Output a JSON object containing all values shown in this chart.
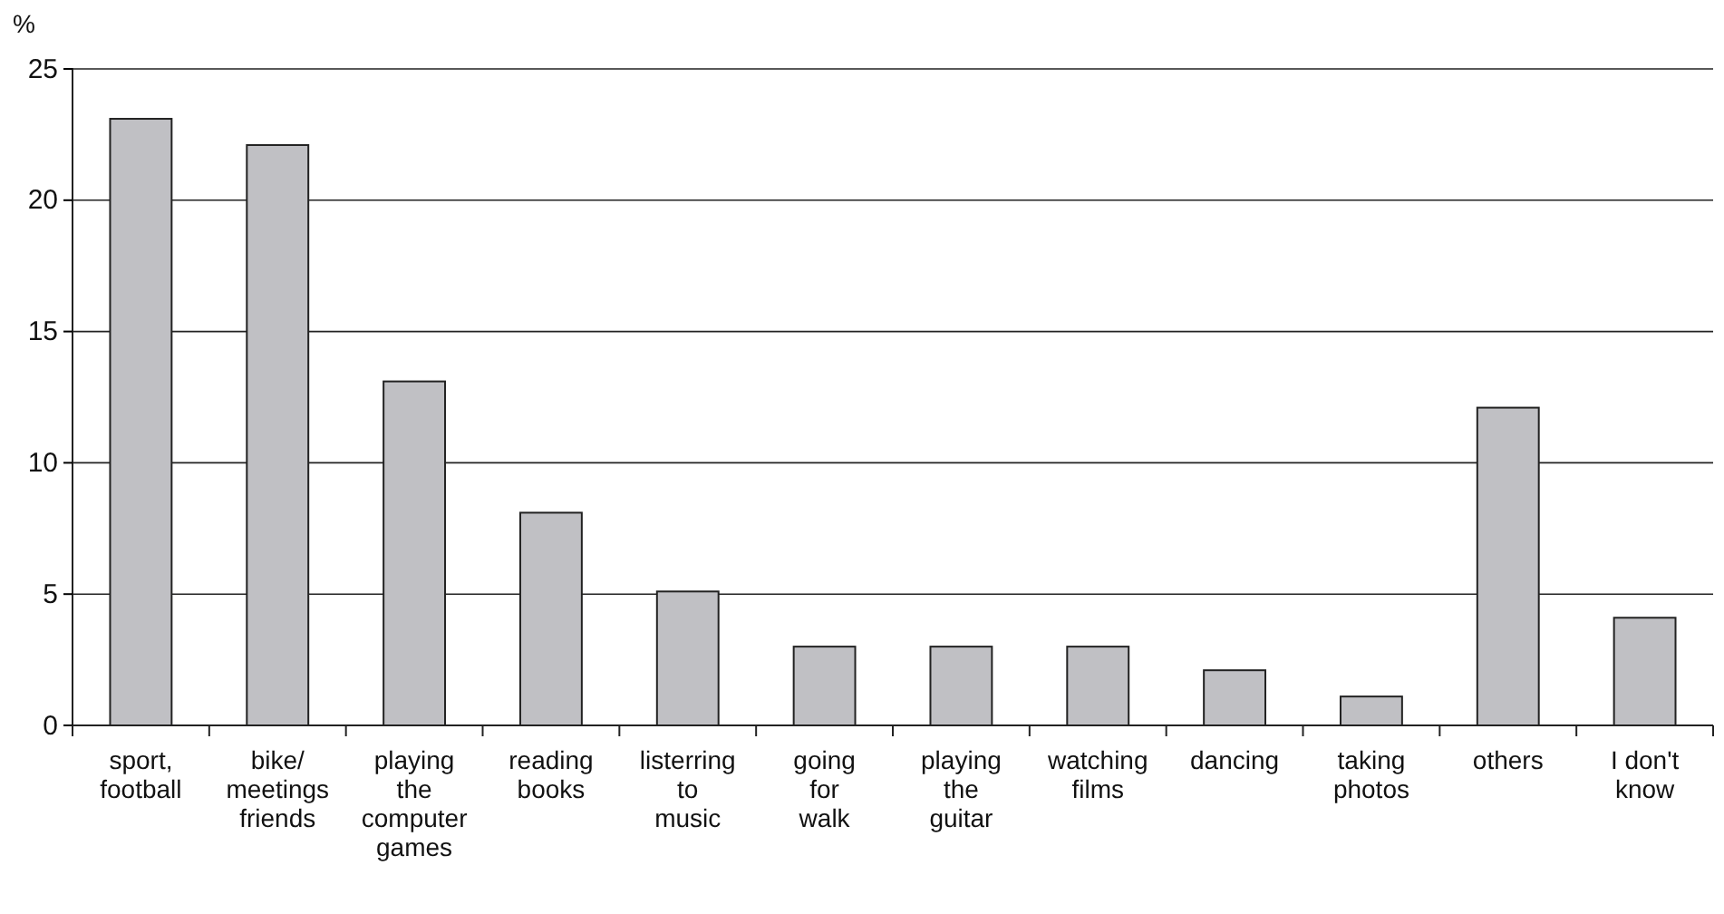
{
  "chart_data": {
    "type": "bar",
    "ylabel": "%",
    "categories": [
      "sport,\nfootball",
      "bike/\nmeetings\nfriends",
      "playing\nthe\ncomputer\ngames",
      "reading\nbooks",
      "listerring\nto\nmusic",
      "going\nfor\nwalk",
      "playing\nthe\nguitar",
      "watching\nfilms",
      "dancing",
      "taking\nphotos",
      "others",
      "I don't\nknow"
    ],
    "values": [
      23.1,
      22.1,
      13.1,
      8.1,
      5.1,
      3,
      3,
      3,
      2.1,
      1.1,
      12.1,
      4.1
    ],
    "color": "#c0c0c4",
    "ylim": [
      0,
      25
    ],
    "yticks": [
      0,
      5,
      10,
      15,
      20,
      25
    ],
    "grid": "y"
  }
}
